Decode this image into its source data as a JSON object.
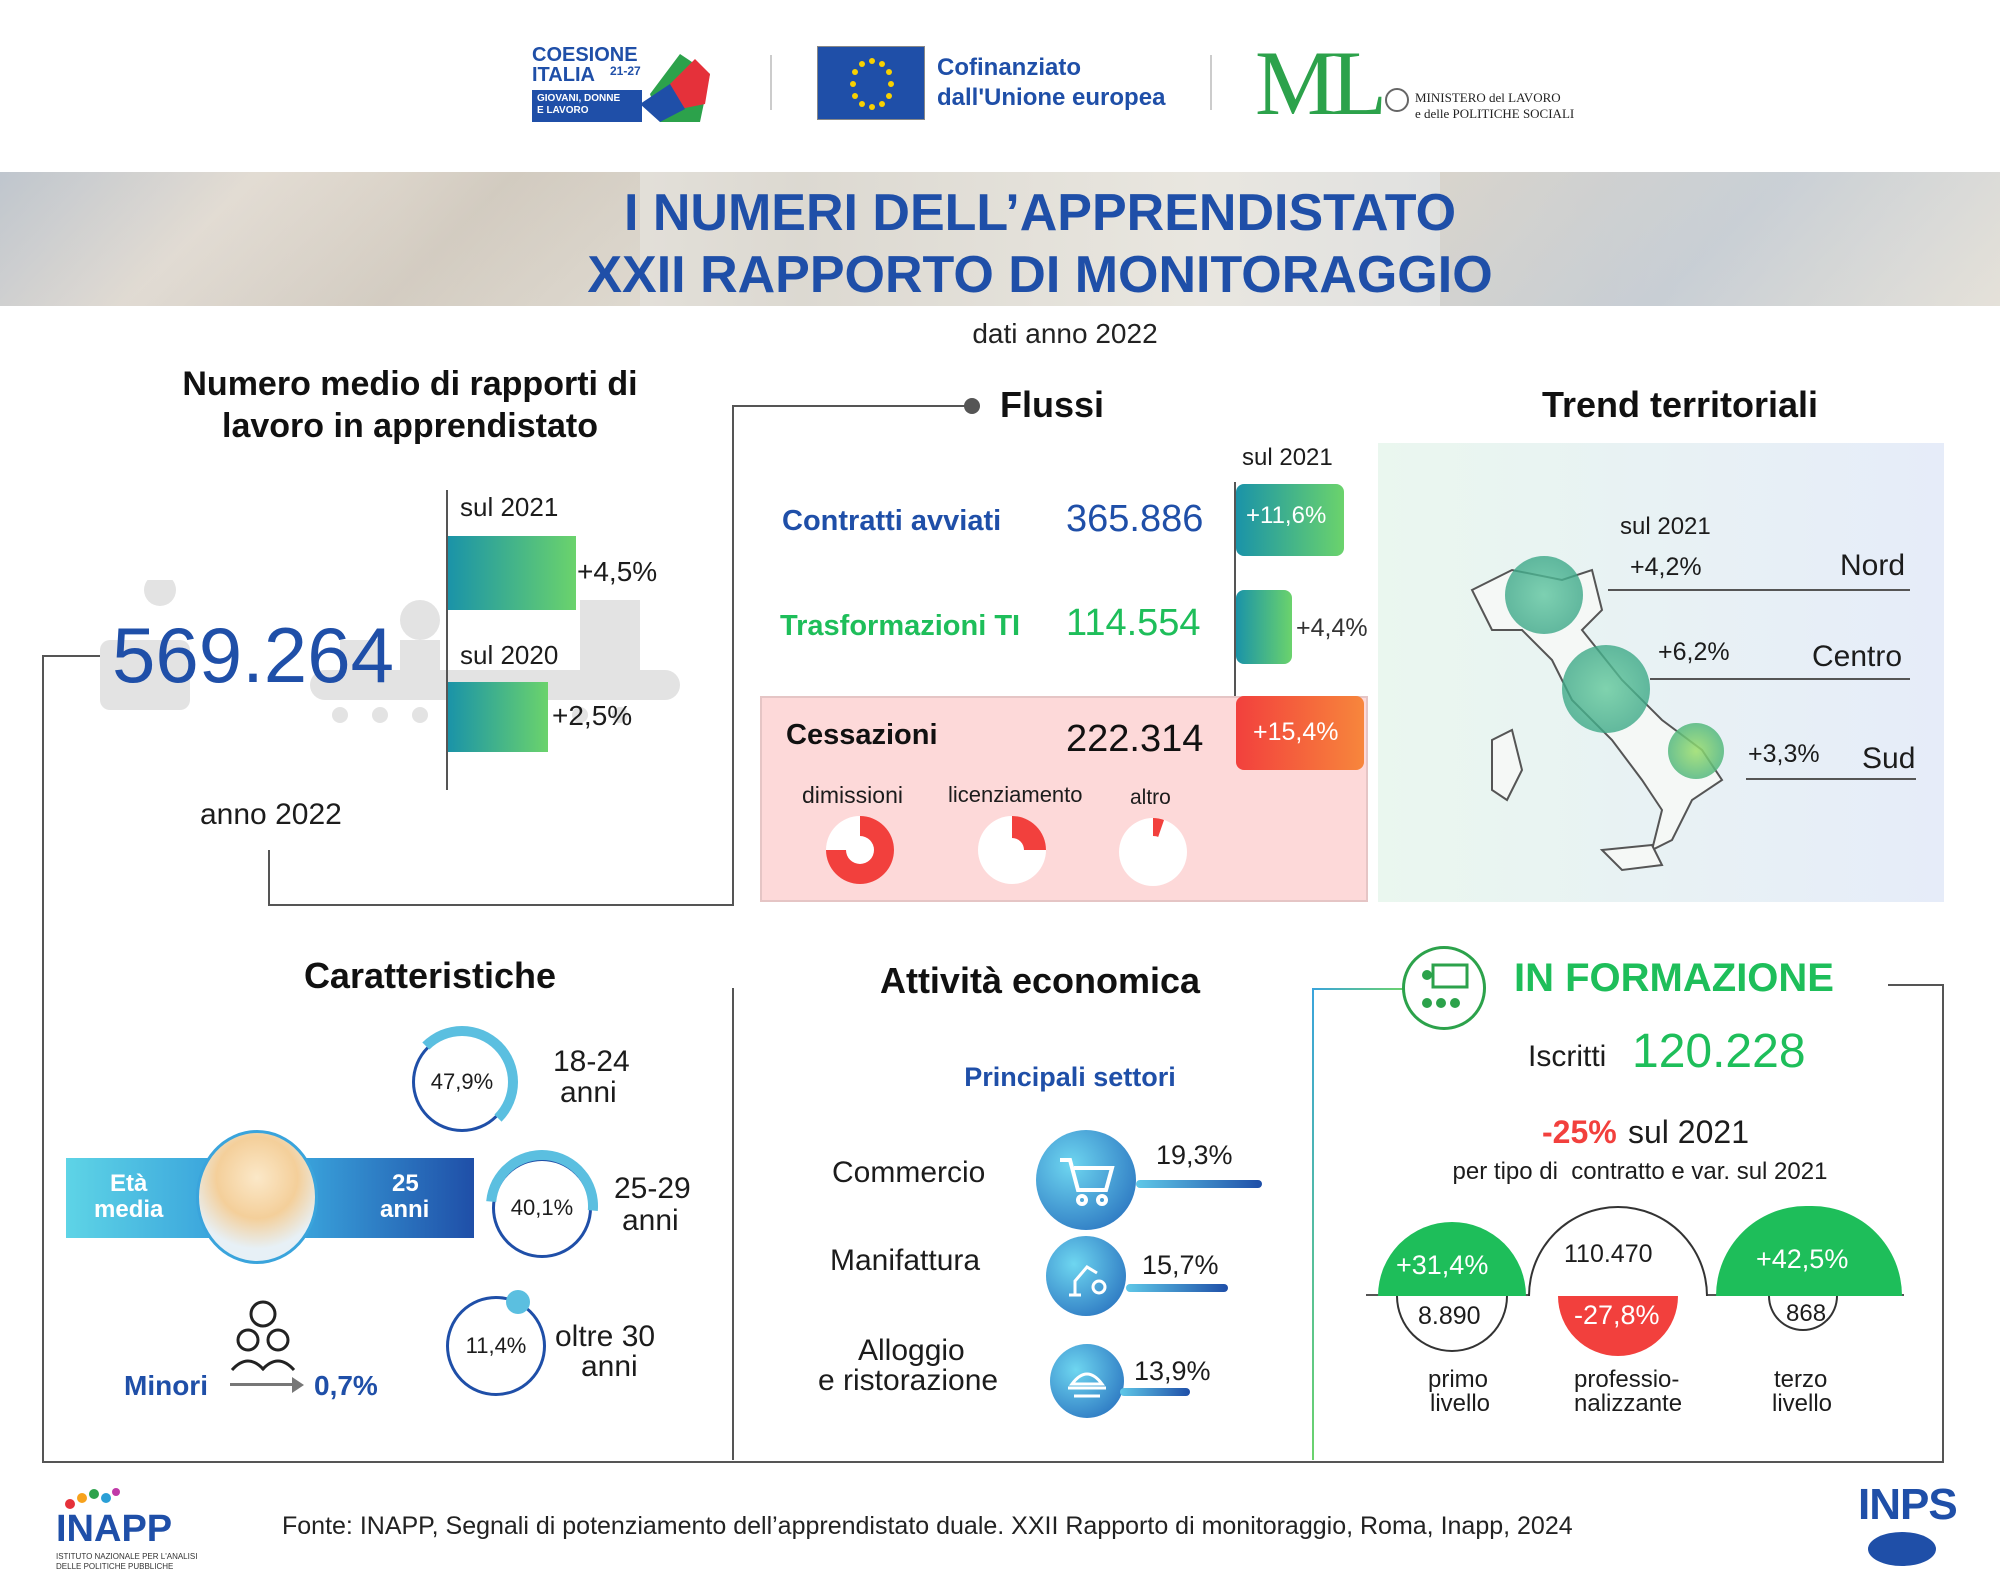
{
  "logos": {
    "coesione_line1": "COESIONE",
    "coesione_line2": "ITALIA",
    "coesione_sup": "21-27",
    "coesione_sub1": "GIOVANI, DONNE",
    "coesione_sub2": "E LAVORO",
    "eu_line1": "Cofinanziato",
    "eu_line2": "dall'Unione europea",
    "ministero_line1": "MINISTERO del LAVORO",
    "ministero_line2": "e delle POLITICHE SOCIALI",
    "ml": "ML",
    "inapp": "INAPP",
    "inapp_sub1": "ISTITUTO NAZIONALE PER L'ANALISI",
    "inapp_sub2": "DELLE POLITICHE PUBBLICHE",
    "inps": "INPS"
  },
  "header": {
    "title_line1": "I NUMERI DELL’APPRENDISTATO",
    "title_line2": "XXII RAPPORTO DI MONITORAGGIO",
    "subtitle": "dati anno 2022"
  },
  "media": {
    "title_line1": "Numero medio di rapporti di",
    "title_line2": "lavoro in apprendistato",
    "value": "569.264",
    "year": "anno 2022",
    "comp1_label": "sul 2021",
    "comp1_value": "+4,5%",
    "comp1_pct": 4.5,
    "comp2_label": "sul 2020",
    "comp2_value": "+2,5%",
    "comp2_pct": 2.5
  },
  "flussi": {
    "title": "Flussi",
    "col_label": "sul 2021",
    "rows": [
      {
        "label": "Contratti avviati",
        "value": "365.886",
        "change": "+11,6%"
      },
      {
        "label": "Trasformazioni TI",
        "value": "114.554",
        "change": "+4,4%"
      },
      {
        "label": "Cessazioni",
        "value": "222.314",
        "change": "+15,4%"
      }
    ],
    "cessazioni_breakdown": [
      {
        "label": "dimissioni"
      },
      {
        "label": "licenziamento"
      },
      {
        "label": "altro"
      }
    ]
  },
  "trend": {
    "title": "Trend territoriali",
    "col_label": "sul 2021",
    "rows": [
      {
        "area": "Nord",
        "change": "+4,2%"
      },
      {
        "area": "Centro",
        "change": "+6,2%"
      },
      {
        "area": "Sud",
        "change": "+3,3%"
      }
    ]
  },
  "caratteristiche": {
    "title": "Caratteristiche",
    "eta_label_1": "Età",
    "eta_label_2": "media",
    "eta_value_1": "25",
    "eta_value_2": "anni",
    "groups": [
      {
        "pct": "47,9%",
        "label1": "18-24",
        "label2": "anni",
        "share": 47.9
      },
      {
        "pct": "40,1%",
        "label1": "25-29",
        "label2": "anni",
        "share": 40.1
      },
      {
        "pct": "11,4%",
        "label1": "oltre 30",
        "label2": "anni",
        "share": 11.4
      }
    ],
    "minori_label": "Minori",
    "minori_value": "0,7%"
  },
  "attivita": {
    "title": "Attività economica",
    "subtitle": "Principali settori",
    "sectors": [
      {
        "name": "Commercio",
        "pct": "19,3%",
        "share": 19.3
      },
      {
        "name": "Manifattura",
        "pct": "15,7%",
        "share": 15.7
      },
      {
        "name_line1": "Alloggio",
        "name_line2": "e ristorazione",
        "pct": "13,9%",
        "share": 13.9
      }
    ]
  },
  "formazione": {
    "title": "IN FORMAZIONE",
    "iscritti_label": "Iscritti",
    "iscritti_value": "120.228",
    "var_value": "-25%",
    "var_label": "sul 2021",
    "per_tipo": "per tipo di  contratto e var. sul 2021",
    "levels": [
      {
        "change": "+31,4%",
        "value": "8.890",
        "label1": "primo",
        "label2": "livello"
      },
      {
        "change": "-27,8%",
        "value": "110.470",
        "label1": "professio-",
        "label2": "nalizzante"
      },
      {
        "change": "+42,5%",
        "value": "868",
        "label1": "terzo",
        "label2": "livello"
      }
    ]
  },
  "footer": {
    "source": "Fonte: INAPP, Segnali di potenziamento dell’apprendistato duale. XXII Rapporto di monitoraggio, Roma, Inapp, 2024"
  },
  "colors": {
    "blue": "#1f4fa8",
    "green": "#1ebe5a",
    "red": "#f2403d"
  }
}
